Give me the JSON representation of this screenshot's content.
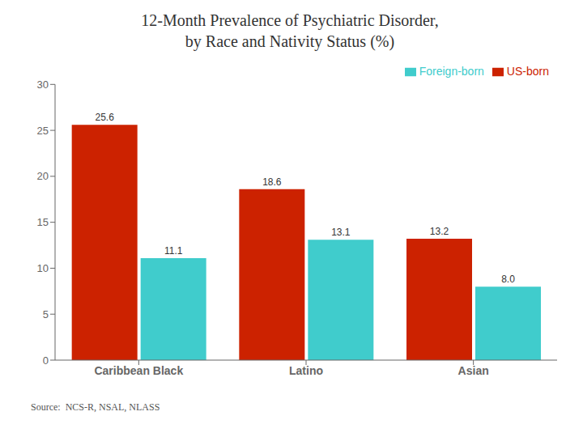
{
  "chart_data": {
    "type": "bar",
    "title": "12-Month Prevalence of Psychiatric Disorder,\nby Race and Nativity Status (%)",
    "categories": [
      "Caribbean Black",
      "Latino",
      "Asian"
    ],
    "series": [
      {
        "name": "US-born",
        "color": "#CC2200",
        "values": [
          25.6,
          18.6,
          13.2
        ]
      },
      {
        "name": "Foreign-born",
        "color": "#40CCCC",
        "values": [
          11.1,
          13.1,
          8.0
        ],
        "value_labels": [
          "11.1",
          "13.1",
          "8.0"
        ]
      }
    ],
    "ylim": [
      0,
      30
    ],
    "yticks": [
      0,
      5,
      10,
      15,
      20,
      25,
      30
    ],
    "grid": false,
    "legend": "upper right",
    "data_labels": true,
    "annotations": [
      "Source:  NCS-R, NSAL, NLASS"
    ]
  }
}
